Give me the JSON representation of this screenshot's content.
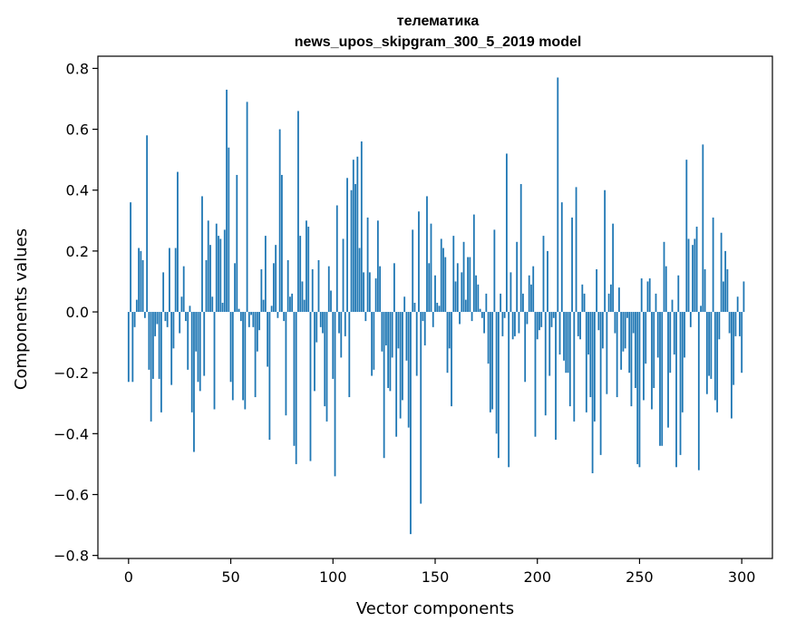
{
  "chart_data": {
    "type": "bar",
    "title_line1": "телематика",
    "title_line2": "news_upos_skipgram_300_5_2019 model",
    "xlabel": "Vector components",
    "ylabel": "Components values",
    "xlim": [
      -15,
      315
    ],
    "ylim": [
      -0.81,
      0.84
    ],
    "x_ticks": [
      0,
      50,
      100,
      150,
      200,
      250,
      300
    ],
    "x_tick_labels": [
      "0",
      "50",
      "100",
      "150",
      "200",
      "250",
      "300"
    ],
    "y_ticks": [
      0.8,
      0.6,
      0.4,
      0.2,
      0.0,
      -0.2,
      -0.4,
      -0.6,
      -0.8
    ],
    "y_tick_labels": [
      "0.8",
      "0.6",
      "0.4",
      "0.2",
      "0.0",
      "−0.2",
      "−0.4",
      "−0.6",
      "−0.8"
    ],
    "bar_color": "#1f77b4",
    "grid": false,
    "values": [
      -0.23,
      0.36,
      -0.23,
      -0.05,
      0.04,
      0.21,
      0.2,
      0.17,
      -0.02,
      0.58,
      -0.19,
      -0.36,
      -0.22,
      -0.08,
      -0.04,
      -0.22,
      -0.33,
      0.13,
      -0.03,
      -0.05,
      0.21,
      -0.24,
      -0.12,
      0.21,
      0.46,
      -0.07,
      0.05,
      0.15,
      -0.03,
      -0.19,
      0.02,
      -0.33,
      -0.46,
      -0.13,
      -0.23,
      -0.26,
      0.38,
      -0.21,
      0.17,
      0.3,
      0.22,
      0.05,
      -0.32,
      0.29,
      0.25,
      0.24,
      0.03,
      0.27,
      0.73,
      0.54,
      -0.23,
      -0.29,
      0.16,
      0.45,
      0.01,
      -0.03,
      -0.29,
      -0.32,
      0.69,
      -0.05,
      -0.01,
      -0.05,
      -0.28,
      -0.13,
      -0.06,
      0.14,
      0.04,
      0.25,
      -0.18,
      -0.42,
      0.02,
      0.16,
      0.22,
      -0.02,
      0.6,
      0.45,
      -0.03,
      -0.34,
      0.17,
      0.05,
      0.06,
      -0.44,
      -0.5,
      0.66,
      0.25,
      0.1,
      0.04,
      0.3,
      0.28,
      -0.49,
      0.14,
      -0.26,
      -0.1,
      0.17,
      -0.05,
      -0.07,
      -0.31,
      -0.36,
      0.15,
      0.07,
      -0.22,
      -0.54,
      0.35,
      -0.07,
      -0.15,
      0.24,
      -0.08,
      0.44,
      -0.28,
      0.4,
      0.5,
      0.42,
      0.51,
      0.21,
      0.56,
      0.13,
      -0.03,
      0.31,
      0.13,
      -0.21,
      -0.19,
      0.11,
      0.3,
      0.15,
      -0.13,
      -0.48,
      -0.11,
      -0.25,
      -0.26,
      -0.15,
      0.16,
      -0.41,
      -0.12,
      -0.35,
      -0.29,
      0.05,
      -0.16,
      -0.38,
      -0.73,
      0.27,
      0.03,
      -0.21,
      0.33,
      -0.63,
      -0.03,
      -0.11,
      0.38,
      0.16,
      0.29,
      -0.05,
      0.12,
      0.03,
      0.02,
      0.24,
      0.21,
      0.18,
      -0.2,
      -0.12,
      -0.31,
      0.25,
      0.1,
      0.16,
      -0.04,
      0.13,
      0.23,
      0.04,
      0.18,
      0.18,
      -0.03,
      0.32,
      0.12,
      0.09,
      0.01,
      -0.02,
      -0.07,
      0.06,
      -0.17,
      -0.33,
      -0.32,
      0.27,
      -0.4,
      -0.48,
      0.06,
      -0.08,
      -0.02,
      0.52,
      -0.51,
      0.13,
      -0.09,
      -0.08,
      0.23,
      -0.07,
      0.42,
      0.06,
      -0.23,
      -0.04,
      0.12,
      0.09,
      0.15,
      -0.41,
      -0.09,
      -0.06,
      -0.05,
      0.25,
      -0.34,
      0.2,
      -0.21,
      -0.05,
      -0.02,
      -0.42,
      0.77,
      -0.14,
      0.36,
      -0.16,
      -0.2,
      -0.2,
      -0.31,
      0.31,
      -0.36,
      0.41,
      -0.08,
      -0.09,
      0.09,
      0.06,
      -0.33,
      -0.14,
      -0.28,
      -0.53,
      -0.36,
      0.14,
      -0.06,
      -0.47,
      -0.12,
      0.4,
      -0.27,
      0.06,
      0.09,
      0.29,
      -0.07,
      -0.28,
      0.08,
      -0.19,
      -0.13,
      -0.12,
      -0.02,
      -0.2,
      -0.31,
      -0.07,
      -0.25,
      -0.5,
      -0.51,
      0.11,
      -0.29,
      -0.17,
      0.1,
      0.11,
      -0.32,
      -0.25,
      0.06,
      -0.15,
      -0.44,
      -0.44,
      0.23,
      0.15,
      -0.38,
      -0.2,
      0.04,
      -0.14,
      -0.51,
      0.12,
      -0.47,
      -0.33,
      -0.15,
      0.5,
      0.24,
      -0.05,
      0.22,
      0.24,
      0.28,
      -0.52,
      0.02,
      0.55,
      0.14,
      -0.27,
      -0.21,
      -0.22,
      0.31,
      -0.29,
      -0.33,
      -0.09,
      0.26,
      0.1,
      0.2,
      0.14,
      -0.07,
      -0.35,
      -0.24,
      -0.08,
      0.05,
      -0.08,
      -0.2,
      0.1
    ]
  }
}
